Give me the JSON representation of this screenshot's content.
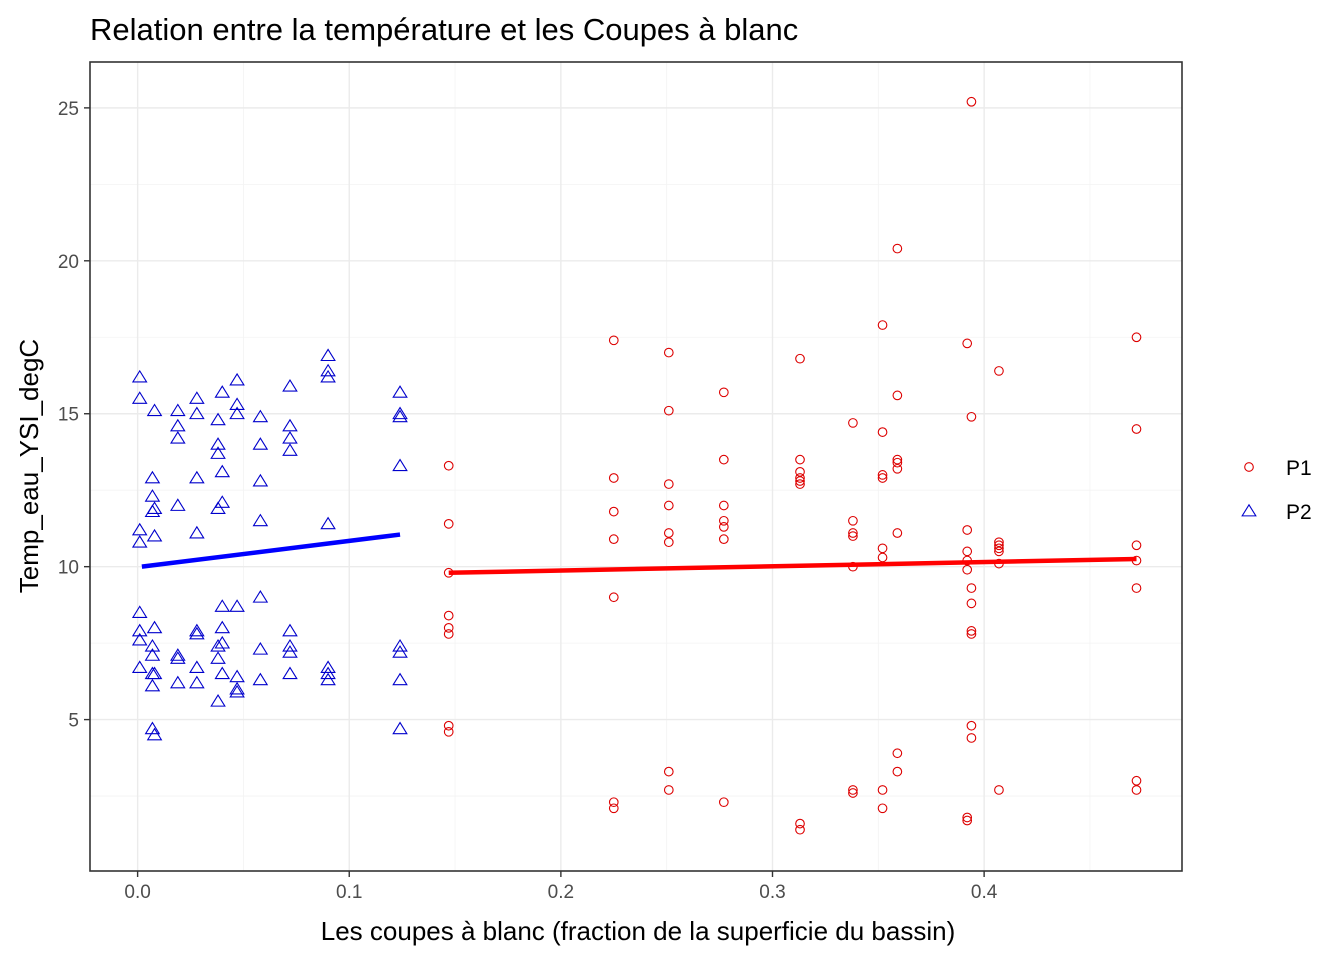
{
  "chart_data": {
    "type": "scatter",
    "title": "Relation entre la température et les Coupes à blanc",
    "xlabel": "Les coupes à blanc (fraction de la superficie du bassin)",
    "ylabel": "Temp_eau_YSI_degC",
    "xlim": [
      -0.0225,
      0.4935
    ],
    "ylim": [
      0.05,
      26.5
    ],
    "x_ticks": [
      0.0,
      0.1,
      0.2,
      0.3,
      0.4
    ],
    "x_tick_labels": [
      "0.0",
      "0.1",
      "0.2",
      "0.3",
      "0.4"
    ],
    "y_ticks": [
      5,
      10,
      15,
      20,
      25
    ],
    "y_tick_labels": [
      "5",
      "10",
      "15",
      "20",
      "25"
    ],
    "grid": true,
    "legend_position": "right",
    "series": [
      {
        "name": "P1",
        "marker": "circle",
        "color": "#dd0000",
        "fit_line": {
          "x": [
            0.147,
            0.472
          ],
          "y": [
            9.8,
            10.25
          ],
          "color": "#ff0000"
        },
        "points": [
          [
            0.147,
            13.3
          ],
          [
            0.147,
            11.4
          ],
          [
            0.147,
            9.8
          ],
          [
            0.147,
            8.4
          ],
          [
            0.147,
            8.0
          ],
          [
            0.147,
            7.8
          ],
          [
            0.147,
            4.8
          ],
          [
            0.147,
            4.6
          ],
          [
            0.225,
            17.4
          ],
          [
            0.225,
            12.9
          ],
          [
            0.225,
            11.8
          ],
          [
            0.225,
            10.9
          ],
          [
            0.225,
            9.0
          ],
          [
            0.225,
            2.3
          ],
          [
            0.225,
            2.1
          ],
          [
            0.251,
            17.0
          ],
          [
            0.251,
            15.1
          ],
          [
            0.251,
            12.7
          ],
          [
            0.251,
            12.0
          ],
          [
            0.251,
            11.1
          ],
          [
            0.251,
            10.8
          ],
          [
            0.251,
            3.3
          ],
          [
            0.251,
            2.7
          ],
          [
            0.277,
            15.7
          ],
          [
            0.277,
            13.5
          ],
          [
            0.277,
            12.0
          ],
          [
            0.277,
            11.5
          ],
          [
            0.277,
            11.3
          ],
          [
            0.277,
            10.9
          ],
          [
            0.277,
            2.3
          ],
          [
            0.313,
            16.8
          ],
          [
            0.313,
            13.5
          ],
          [
            0.313,
            13.1
          ],
          [
            0.313,
            12.9
          ],
          [
            0.313,
            12.8
          ],
          [
            0.313,
            12.7
          ],
          [
            0.313,
            1.6
          ],
          [
            0.313,
            1.4
          ],
          [
            0.338,
            14.7
          ],
          [
            0.338,
            11.5
          ],
          [
            0.338,
            11.1
          ],
          [
            0.338,
            11.0
          ],
          [
            0.338,
            10.0
          ],
          [
            0.338,
            2.7
          ],
          [
            0.338,
            2.6
          ],
          [
            0.352,
            17.9
          ],
          [
            0.352,
            14.4
          ],
          [
            0.352,
            13.0
          ],
          [
            0.352,
            12.9
          ],
          [
            0.352,
            10.6
          ],
          [
            0.352,
            10.3
          ],
          [
            0.352,
            2.7
          ],
          [
            0.352,
            2.1
          ],
          [
            0.359,
            20.4
          ],
          [
            0.359,
            15.6
          ],
          [
            0.359,
            13.5
          ],
          [
            0.359,
            13.4
          ],
          [
            0.359,
            13.2
          ],
          [
            0.359,
            11.1
          ],
          [
            0.359,
            3.9
          ],
          [
            0.359,
            3.3
          ],
          [
            0.392,
            17.3
          ],
          [
            0.392,
            11.2
          ],
          [
            0.392,
            10.5
          ],
          [
            0.392,
            10.2
          ],
          [
            0.392,
            9.9
          ],
          [
            0.392,
            1.8
          ],
          [
            0.392,
            1.7
          ],
          [
            0.394,
            25.2
          ],
          [
            0.394,
            14.9
          ],
          [
            0.394,
            9.3
          ],
          [
            0.394,
            8.8
          ],
          [
            0.394,
            7.9
          ],
          [
            0.394,
            7.8
          ],
          [
            0.394,
            4.8
          ],
          [
            0.394,
            4.4
          ],
          [
            0.407,
            16.4
          ],
          [
            0.407,
            10.8
          ],
          [
            0.407,
            10.7
          ],
          [
            0.407,
            10.6
          ],
          [
            0.407,
            10.5
          ],
          [
            0.407,
            10.1
          ],
          [
            0.407,
            2.7
          ],
          [
            0.472,
            17.5
          ],
          [
            0.472,
            14.5
          ],
          [
            0.472,
            10.7
          ],
          [
            0.472,
            10.2
          ],
          [
            0.472,
            9.3
          ],
          [
            0.472,
            3.0
          ],
          [
            0.472,
            2.7
          ]
        ]
      },
      {
        "name": "P2",
        "marker": "triangle",
        "color": "#0000cc",
        "fit_line": {
          "x": [
            0.002,
            0.124
          ],
          "y": [
            10.0,
            11.05
          ],
          "color": "#0000ff"
        },
        "points": [
          [
            0.001,
            16.2
          ],
          [
            0.001,
            15.5
          ],
          [
            0.001,
            11.2
          ],
          [
            0.001,
            10.8
          ],
          [
            0.001,
            8.5
          ],
          [
            0.001,
            7.9
          ],
          [
            0.001,
            7.6
          ],
          [
            0.001,
            6.7
          ],
          [
            0.007,
            12.9
          ],
          [
            0.007,
            12.3
          ],
          [
            0.007,
            11.8
          ],
          [
            0.007,
            7.4
          ],
          [
            0.007,
            7.1
          ],
          [
            0.007,
            6.5
          ],
          [
            0.007,
            6.1
          ],
          [
            0.007,
            4.7
          ],
          [
            0.008,
            15.1
          ],
          [
            0.008,
            11.9
          ],
          [
            0.008,
            11.0
          ],
          [
            0.008,
            8.0
          ],
          [
            0.008,
            6.5
          ],
          [
            0.008,
            4.5
          ],
          [
            0.019,
            15.1
          ],
          [
            0.019,
            14.6
          ],
          [
            0.019,
            14.2
          ],
          [
            0.019,
            12.0
          ],
          [
            0.019,
            7.1
          ],
          [
            0.019,
            7.0
          ],
          [
            0.019,
            6.2
          ],
          [
            0.028,
            15.5
          ],
          [
            0.028,
            15.0
          ],
          [
            0.028,
            12.9
          ],
          [
            0.028,
            11.1
          ],
          [
            0.028,
            7.9
          ],
          [
            0.028,
            7.8
          ],
          [
            0.028,
            6.7
          ],
          [
            0.028,
            6.2
          ],
          [
            0.038,
            14.8
          ],
          [
            0.038,
            14.0
          ],
          [
            0.038,
            13.7
          ],
          [
            0.038,
            11.9
          ],
          [
            0.038,
            7.4
          ],
          [
            0.038,
            7.0
          ],
          [
            0.038,
            5.6
          ],
          [
            0.04,
            15.7
          ],
          [
            0.04,
            13.1
          ],
          [
            0.04,
            12.1
          ],
          [
            0.04,
            8.7
          ],
          [
            0.04,
            8.0
          ],
          [
            0.04,
            7.5
          ],
          [
            0.04,
            6.5
          ],
          [
            0.047,
            16.1
          ],
          [
            0.047,
            15.3
          ],
          [
            0.047,
            15.0
          ],
          [
            0.047,
            8.7
          ],
          [
            0.047,
            6.4
          ],
          [
            0.047,
            6.0
          ],
          [
            0.047,
            5.9
          ],
          [
            0.058,
            14.9
          ],
          [
            0.058,
            14.0
          ],
          [
            0.058,
            12.8
          ],
          [
            0.058,
            11.5
          ],
          [
            0.058,
            9.0
          ],
          [
            0.058,
            7.3
          ],
          [
            0.058,
            6.3
          ],
          [
            0.072,
            15.9
          ],
          [
            0.072,
            14.6
          ],
          [
            0.072,
            14.2
          ],
          [
            0.072,
            13.8
          ],
          [
            0.072,
            7.9
          ],
          [
            0.072,
            7.4
          ],
          [
            0.072,
            7.2
          ],
          [
            0.072,
            6.5
          ],
          [
            0.09,
            16.9
          ],
          [
            0.09,
            16.4
          ],
          [
            0.09,
            16.2
          ],
          [
            0.09,
            11.4
          ],
          [
            0.09,
            6.7
          ],
          [
            0.09,
            6.5
          ],
          [
            0.09,
            6.3
          ],
          [
            0.124,
            15.7
          ],
          [
            0.124,
            15.0
          ],
          [
            0.124,
            14.9
          ],
          [
            0.124,
            13.3
          ],
          [
            0.124,
            7.4
          ],
          [
            0.124,
            7.2
          ],
          [
            0.124,
            6.3
          ],
          [
            0.124,
            4.7
          ]
        ]
      }
    ]
  }
}
